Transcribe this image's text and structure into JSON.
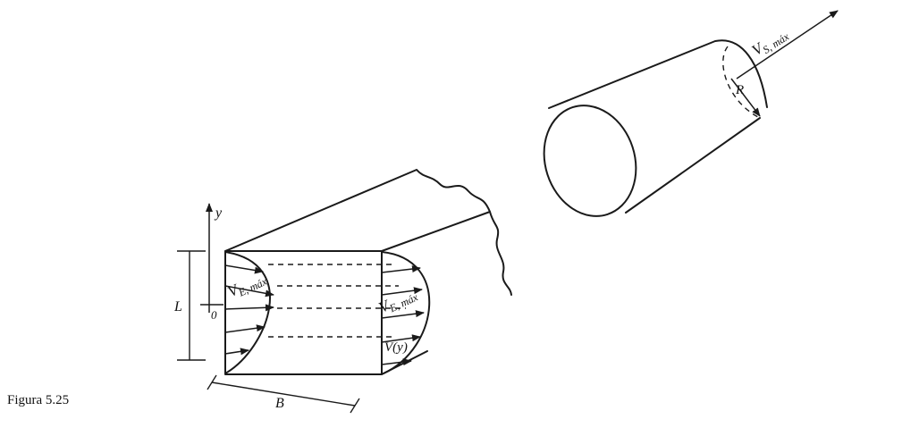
{
  "caption": "Figura 5.25",
  "labels": {
    "y_axis": "y",
    "origin": "0",
    "height": "L",
    "width": "B",
    "entrance_max_left": "V",
    "entrance_max_left_sub": "E, máx",
    "entrance_max_right": "V",
    "entrance_max_right_sub": "E, máx",
    "profile": "V(y)",
    "exit_max": "V",
    "exit_max_sub": "S, máx",
    "radius": "R"
  }
}
